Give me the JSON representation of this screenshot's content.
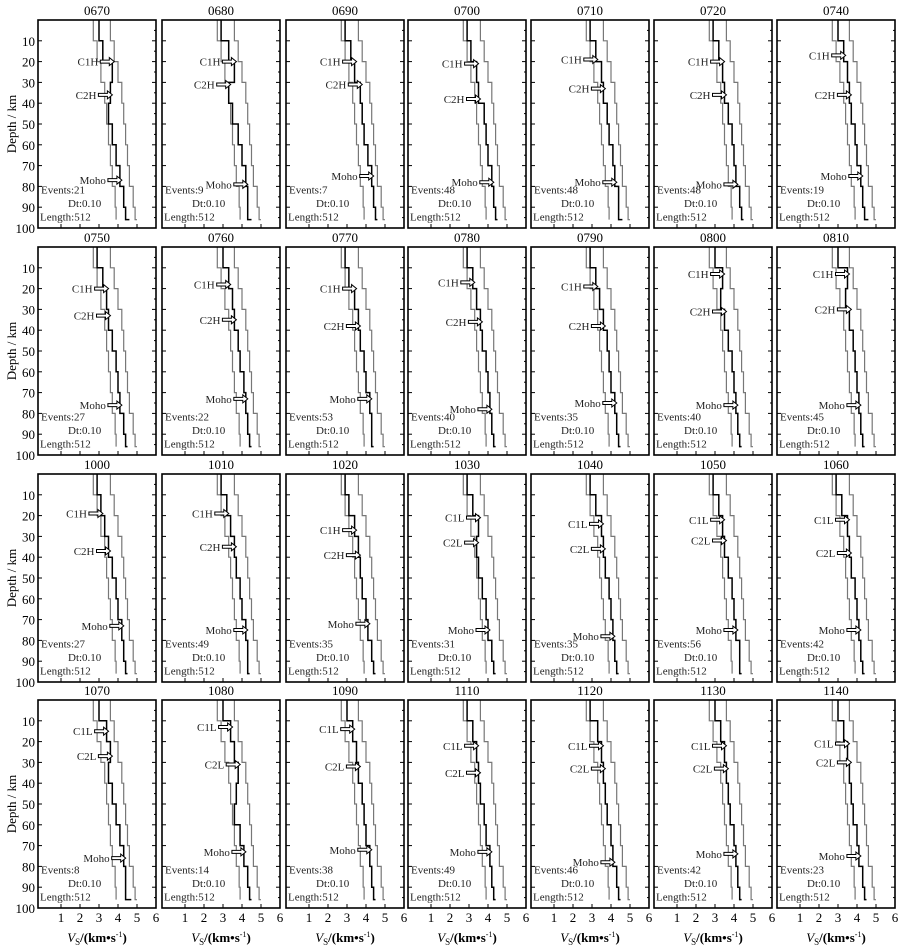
{
  "chart_data": {
    "type": "line",
    "layout": "small multiples, 4 rows x 7 columns",
    "ylabel": "Depth / km",
    "xlabel_main": "V",
    "xlabel_sub": "S",
    "xlabel_unit": "/(km•s",
    "xlabel_exp": "-1",
    "xlabel_close": ")",
    "xlim": [
      0,
      6
    ],
    "ylim": [
      0,
      100
    ],
    "y_inverted": true,
    "xticks": [
      1,
      2,
      3,
      4,
      5,
      6
    ],
    "yticks": [
      10,
      20,
      30,
      40,
      50,
      60,
      70,
      80,
      90,
      100
    ],
    "grid": false,
    "depths": [
      0,
      10,
      20,
      30,
      40,
      50,
      60,
      70,
      80,
      90,
      100
    ],
    "envelope_lower": [
      2.7,
      2.9,
      3.1,
      3.3,
      3.4,
      3.5,
      3.6,
      3.7,
      3.85,
      3.9,
      3.9
    ],
    "envelope_upper": [
      3.6,
      3.8,
      4.0,
      4.2,
      4.3,
      4.4,
      4.5,
      4.6,
      4.8,
      4.9,
      5.0
    ],
    "panel_text": {
      "dt": "Dt:0.10",
      "length": "Length:512",
      "events_prefix": "Events:",
      "moho": "Moho"
    },
    "panels": [
      {
        "station": "0670",
        "events": "21",
        "c1": "C1H",
        "c1_depth": 20,
        "c2": "C2H",
        "c2_depth": 36,
        "moho_depth": 77,
        "model": [
          3.0,
          3.2,
          3.7,
          3.6,
          3.5,
          3.7,
          3.9,
          4.1,
          4.3,
          4.4,
          4.6
        ]
      },
      {
        "station": "0680",
        "events": "9",
        "c1": "C1H",
        "c1_depth": 20,
        "c2": "C2H",
        "c2_depth": 31,
        "moho_depth": 79,
        "model": [
          2.9,
          3.3,
          3.6,
          3.3,
          3.5,
          3.8,
          4.0,
          4.2,
          4.3,
          4.3,
          4.5
        ]
      },
      {
        "station": "0690",
        "events": "7",
        "c1": "C1H",
        "c1_depth": 20,
        "c2": "C2H",
        "c2_depth": 31,
        "moho_depth": 75,
        "model": [
          2.9,
          3.2,
          3.4,
          3.7,
          3.8,
          3.9,
          4.1,
          4.3,
          4.4,
          4.5,
          4.6
        ]
      },
      {
        "station": "0700",
        "events": "48",
        "c1": "C1H",
        "c1_depth": 21,
        "c2": "C2H",
        "c2_depth": 38,
        "moho_depth": 78,
        "model": [
          2.9,
          3.1,
          3.4,
          3.5,
          3.8,
          3.9,
          4.0,
          4.2,
          4.3,
          4.4,
          4.5
        ]
      },
      {
        "station": "0710",
        "events": "48",
        "c1": "C1H",
        "c1_depth": 19,
        "c2": "C2H",
        "c2_depth": 33,
        "moho_depth": 78,
        "model": [
          2.9,
          3.2,
          3.5,
          3.6,
          3.8,
          3.9,
          4.1,
          4.2,
          4.4,
          4.4,
          4.6
        ]
      },
      {
        "station": "0720",
        "events": "48",
        "c1": "C1H",
        "c1_depth": 20,
        "c2": "C2H",
        "c2_depth": 36,
        "moho_depth": 79,
        "model": [
          2.9,
          3.2,
          3.4,
          3.5,
          3.7,
          3.9,
          4.0,
          4.1,
          4.3,
          4.4,
          4.5
        ]
      },
      {
        "station": "0740",
        "events": "19",
        "c1": "C1H",
        "c1_depth": 17,
        "c2": "C2H",
        "c2_depth": 36,
        "moho_depth": 75,
        "model": [
          3.0,
          3.3,
          3.5,
          3.6,
          3.7,
          3.9,
          4.0,
          4.2,
          4.3,
          4.4,
          4.6
        ]
      },
      {
        "station": "0750",
        "events": "27",
        "c1": "C1H",
        "c1_depth": 20,
        "c2": "C2H",
        "c2_depth": 33,
        "moho_depth": 76,
        "model": [
          2.9,
          3.2,
          3.4,
          3.5,
          3.7,
          3.9,
          4.0,
          4.1,
          4.3,
          4.4,
          4.5
        ]
      },
      {
        "station": "0760",
        "events": "22",
        "c1": "C1H",
        "c1_depth": 18,
        "c2": "C2H",
        "c2_depth": 35,
        "moho_depth": 73,
        "model": [
          3.0,
          3.3,
          3.5,
          3.6,
          3.8,
          3.9,
          4.1,
          4.2,
          4.3,
          4.4,
          4.5
        ]
      },
      {
        "station": "0770",
        "events": "53",
        "c1": "C1H",
        "c1_depth": 20,
        "c2": "C2H",
        "c2_depth": 38,
        "moho_depth": 73,
        "model": [
          2.9,
          3.1,
          3.4,
          3.6,
          3.7,
          3.9,
          4.0,
          4.2,
          4.3,
          4.3,
          4.4
        ]
      },
      {
        "station": "0780",
        "events": "40",
        "c1": "C1H",
        "c1_depth": 17,
        "c2": "C2H",
        "c2_depth": 36,
        "moho_depth": 78,
        "model": [
          2.9,
          3.2,
          3.4,
          3.6,
          3.7,
          3.9,
          4.0,
          4.1,
          4.2,
          4.3,
          4.4
        ]
      },
      {
        "station": "0790",
        "events": "35",
        "c1": "C1H",
        "c1_depth": 19,
        "c2": "C2H",
        "c2_depth": 38,
        "moho_depth": 75,
        "model": [
          2.9,
          3.2,
          3.4,
          3.6,
          3.8,
          3.9,
          4.0,
          4.2,
          4.3,
          4.4,
          4.5
        ]
      },
      {
        "station": "0800",
        "events": "40",
        "c1": "C1H",
        "c1_depth": 13,
        "c2": "C2H",
        "c2_depth": 31,
        "moho_depth": 76,
        "model": [
          3.0,
          3.4,
          3.3,
          3.5,
          3.7,
          3.9,
          4.0,
          4.1,
          4.2,
          4.3,
          4.4
        ]
      },
      {
        "station": "0810",
        "events": "45",
        "c1": "C1H",
        "c1_depth": 13,
        "c2": "C2H",
        "c2_depth": 30,
        "moho_depth": 76,
        "model": [
          3.0,
          3.5,
          3.4,
          3.6,
          3.8,
          3.9,
          4.0,
          4.1,
          4.2,
          4.3,
          4.4
        ]
      },
      {
        "station": "1000",
        "events": "27",
        "c1": "C1H",
        "c1_depth": 19,
        "c2": "C2H",
        "c2_depth": 37,
        "moho_depth": 73,
        "model": [
          2.9,
          3.1,
          3.3,
          3.5,
          3.7,
          3.9,
          4.0,
          4.2,
          4.3,
          4.4,
          4.5
        ]
      },
      {
        "station": "1010",
        "events": "49",
        "c1": "C1H",
        "c1_depth": 19,
        "c2": "C2H",
        "c2_depth": 35,
        "moho_depth": 75,
        "model": [
          2.9,
          3.2,
          3.4,
          3.6,
          3.7,
          3.9,
          4.0,
          4.2,
          4.3,
          4.3,
          4.4
        ]
      },
      {
        "station": "1020",
        "events": "35",
        "c1": "C1H",
        "c1_depth": 27,
        "c2": "C2H",
        "c2_depth": 39,
        "moho_depth": 72,
        "model": [
          2.9,
          3.1,
          3.4,
          3.6,
          3.7,
          3.8,
          4.0,
          4.1,
          4.3,
          4.4,
          4.5
        ]
      },
      {
        "station": "1030",
        "events": "31",
        "c1": "C1L",
        "c1_depth": 21,
        "c2": "C2L",
        "c2_depth": 33,
        "moho_depth": 75,
        "model": [
          2.9,
          3.2,
          3.5,
          3.4,
          3.5,
          3.7,
          3.9,
          4.0,
          4.2,
          4.3,
          4.4
        ]
      },
      {
        "station": "1040",
        "events": "35",
        "c1": "C1L",
        "c1_depth": 24,
        "c2": "C2L",
        "c2_depth": 36,
        "moho_depth": 78,
        "model": [
          2.9,
          3.2,
          3.5,
          3.6,
          3.7,
          3.9,
          4.0,
          4.1,
          4.2,
          4.3,
          4.4
        ]
      },
      {
        "station": "1050",
        "events": "56",
        "c1": "C1L",
        "c1_depth": 22,
        "c2": "C2L",
        "c2_depth": 32,
        "moho_depth": 75,
        "model": [
          2.9,
          3.2,
          3.4,
          3.5,
          3.7,
          3.9,
          4.0,
          4.1,
          4.3,
          4.3,
          4.4
        ]
      },
      {
        "station": "1060",
        "events": "42",
        "c1": "C1L",
        "c1_depth": 22,
        "c2": "C2L",
        "c2_depth": 38,
        "moho_depth": 75,
        "model": [
          2.9,
          3.2,
          3.5,
          3.6,
          3.7,
          3.9,
          4.0,
          4.1,
          4.2,
          4.3,
          4.4
        ]
      },
      {
        "station": "1070",
        "events": "8",
        "c1": "C1L",
        "c1_depth": 15,
        "c2": "C2L",
        "c2_depth": 27,
        "moho_depth": 76,
        "model": [
          3.0,
          3.4,
          3.6,
          3.5,
          3.7,
          3.9,
          4.1,
          4.3,
          4.4,
          4.4,
          4.7
        ]
      },
      {
        "station": "1080",
        "events": "14",
        "c1": "C1L",
        "c1_depth": 13,
        "c2": "C2L",
        "c2_depth": 31,
        "moho_depth": 73,
        "model": [
          3.0,
          3.4,
          3.6,
          3.8,
          3.7,
          3.6,
          3.9,
          4.1,
          4.3,
          4.4,
          4.5
        ]
      },
      {
        "station": "1090",
        "events": "38",
        "c1": "C1L",
        "c1_depth": 14,
        "c2": "C2L",
        "c2_depth": 32,
        "moho_depth": 72,
        "model": [
          3.0,
          3.3,
          3.5,
          3.6,
          3.8,
          3.9,
          4.0,
          4.2,
          4.3,
          4.4,
          4.5
        ]
      },
      {
        "station": "1110",
        "events": "49",
        "c1": "C1L",
        "c1_depth": 22,
        "c2": "C2L",
        "c2_depth": 35,
        "moho_depth": 73,
        "model": [
          2.9,
          3.2,
          3.4,
          3.5,
          3.6,
          3.8,
          3.9,
          4.1,
          4.2,
          4.3,
          4.4
        ]
      },
      {
        "station": "1120",
        "events": "46",
        "c1": "C1L",
        "c1_depth": 22,
        "c2": "C2L",
        "c2_depth": 33,
        "moho_depth": 78,
        "model": [
          2.9,
          3.3,
          3.5,
          3.6,
          3.7,
          3.8,
          4.0,
          4.1,
          4.3,
          4.4,
          4.5
        ]
      },
      {
        "station": "1130",
        "events": "42",
        "c1": "C1L",
        "c1_depth": 22,
        "c2": "C2L",
        "c2_depth": 33,
        "moho_depth": 74,
        "model": [
          3.0,
          3.3,
          3.5,
          3.6,
          3.7,
          3.8,
          4.0,
          4.1,
          4.2,
          4.3,
          4.4
        ]
      },
      {
        "station": "1140",
        "events": "23",
        "c1": "C1L",
        "c1_depth": 21,
        "c2": "C2L",
        "c2_depth": 30,
        "moho_depth": 75,
        "model": [
          3.0,
          3.3,
          3.5,
          3.6,
          3.7,
          3.8,
          4.0,
          4.1,
          4.3,
          4.4,
          4.5
        ]
      }
    ]
  }
}
